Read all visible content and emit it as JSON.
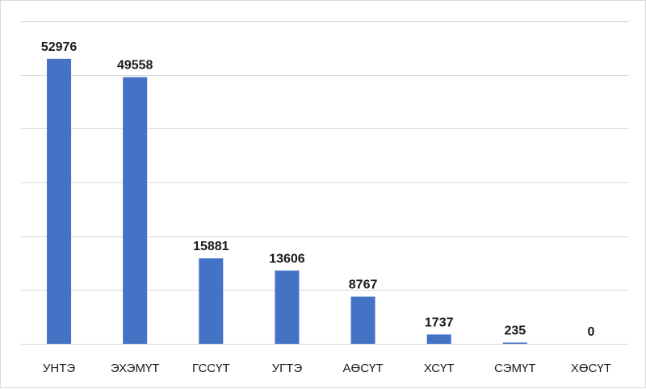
{
  "chart_data": {
    "type": "bar",
    "categories": [
      "УНТЭ",
      "ЭХЭМҮТ",
      "ГССҮТ",
      "УГТЭ",
      "АӨСҮТ",
      "ХСҮТ",
      "СЭМҮТ",
      "ХӨСҮТ"
    ],
    "values": [
      52976,
      49558,
      15881,
      13606,
      8767,
      1737,
      235,
      0
    ],
    "title": "",
    "xlabel": "",
    "ylabel": "",
    "ylim": [
      0,
      60000
    ],
    "grid": true,
    "legend": "none",
    "bar_color": "#4472c4",
    "grid_color": "#d9d9d9"
  }
}
